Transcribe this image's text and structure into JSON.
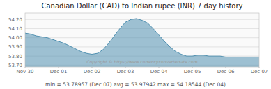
{
  "chart_data": {
    "type": "area",
    "title": "Canadian Dollar (CAD) to Indian rupee (INR) 7 day history",
    "annotations": [
      "min = 53.78957 (Dec 07) avg = 53.97942 max = 54.18544 (Dec 04)",
      "Copyright © https://www.currencyconverterrate.com"
    ],
    "x": [
      0.0,
      0.167,
      0.333,
      0.5,
      0.667,
      0.833,
      1.0,
      1.167,
      1.333,
      1.5,
      1.667,
      1.833,
      2.0,
      2.167,
      2.333,
      2.5,
      2.667,
      2.833,
      3.0,
      3.167,
      3.333,
      3.5,
      3.667,
      3.833,
      4.0,
      4.167,
      4.333,
      4.5,
      4.667,
      4.833,
      5.0,
      5.167,
      5.333,
      5.5,
      5.667,
      5.833,
      6.0,
      6.167,
      6.333,
      6.5,
      6.667,
      6.833,
      7.0
    ],
    "values": [
      54.05,
      54.04,
      54.02,
      54.01,
      54.0,
      53.98,
      53.96,
      53.94,
      53.91,
      53.88,
      53.85,
      53.83,
      53.82,
      53.83,
      53.87,
      53.94,
      54.02,
      54.1,
      54.17,
      54.2,
      54.21,
      54.19,
      54.16,
      54.1,
      54.03,
      53.96,
      53.9,
      53.85,
      53.82,
      53.8,
      53.8,
      53.81,
      53.81,
      53.8,
      53.8,
      53.8,
      53.79,
      53.79,
      53.79,
      53.79,
      53.79,
      53.79,
      53.79
    ],
    "color": "#5090b0",
    "xlim": [
      0,
      7
    ],
    "xticks": [
      {
        "value": 0,
        "label": "Nov 30"
      },
      {
        "value": 1,
        "label": "Dec 01"
      },
      {
        "value": 2,
        "label": "Dec 02"
      },
      {
        "value": 3,
        "label": "Dec 03"
      },
      {
        "value": 4,
        "label": "Dec 04"
      },
      {
        "value": 5,
        "label": "Dec 05"
      },
      {
        "value": 6,
        "label": "Dec 06"
      },
      {
        "value": 7,
        "label": "Dec 07"
      }
    ],
    "ylim": [
      53.68,
      54.27
    ],
    "yticks": [
      {
        "value": 53.7,
        "label": "53.70"
      },
      {
        "value": 53.8,
        "label": "53.80"
      },
      {
        "value": 53.9,
        "label": "53.90"
      },
      {
        "value": 54.0,
        "label": "54.00"
      },
      {
        "value": 54.1,
        "label": "54.10"
      },
      {
        "value": 54.2,
        "label": "54.20"
      }
    ],
    "grid": true
  }
}
